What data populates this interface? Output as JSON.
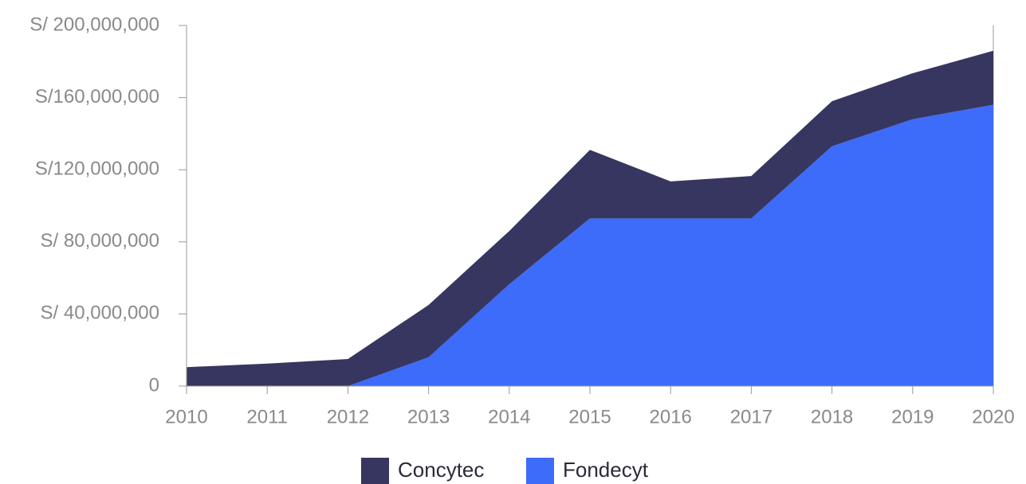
{
  "chart_data": {
    "type": "stacked_area",
    "categories": [
      "2010",
      "2011",
      "2012",
      "2013",
      "2014",
      "2015",
      "2016",
      "2017",
      "2018",
      "2019",
      "2020"
    ],
    "series": [
      {
        "name": "Fondecyt",
        "color": "#3d6bfa",
        "values": [
          0,
          0,
          0,
          16000000,
          56500000,
          93000000,
          93000000,
          93000000,
          133000000,
          148000000,
          156000000
        ]
      },
      {
        "name": "Concytec",
        "color": "#363660",
        "values": [
          10500000,
          12500000,
          15000000,
          29000000,
          29500000,
          38000000,
          20500000,
          23500000,
          25000000,
          25500000,
          30000000
        ]
      }
    ],
    "ylim": [
      0,
      200000000
    ],
    "yticks": [
      0,
      {
        "value": 40000000,
        "label": "S/ 40,000,000"
      },
      {
        "value": 80000000,
        "label": "S/ 80,000,000"
      },
      {
        "value": 120000000,
        "label": "S/120,000,000"
      },
      {
        "value": 160000000,
        "label": "S/160,000,000"
      },
      {
        "value": 200000000,
        "label": "S/ 200,000,000"
      }
    ],
    "legend": "bottom"
  }
}
